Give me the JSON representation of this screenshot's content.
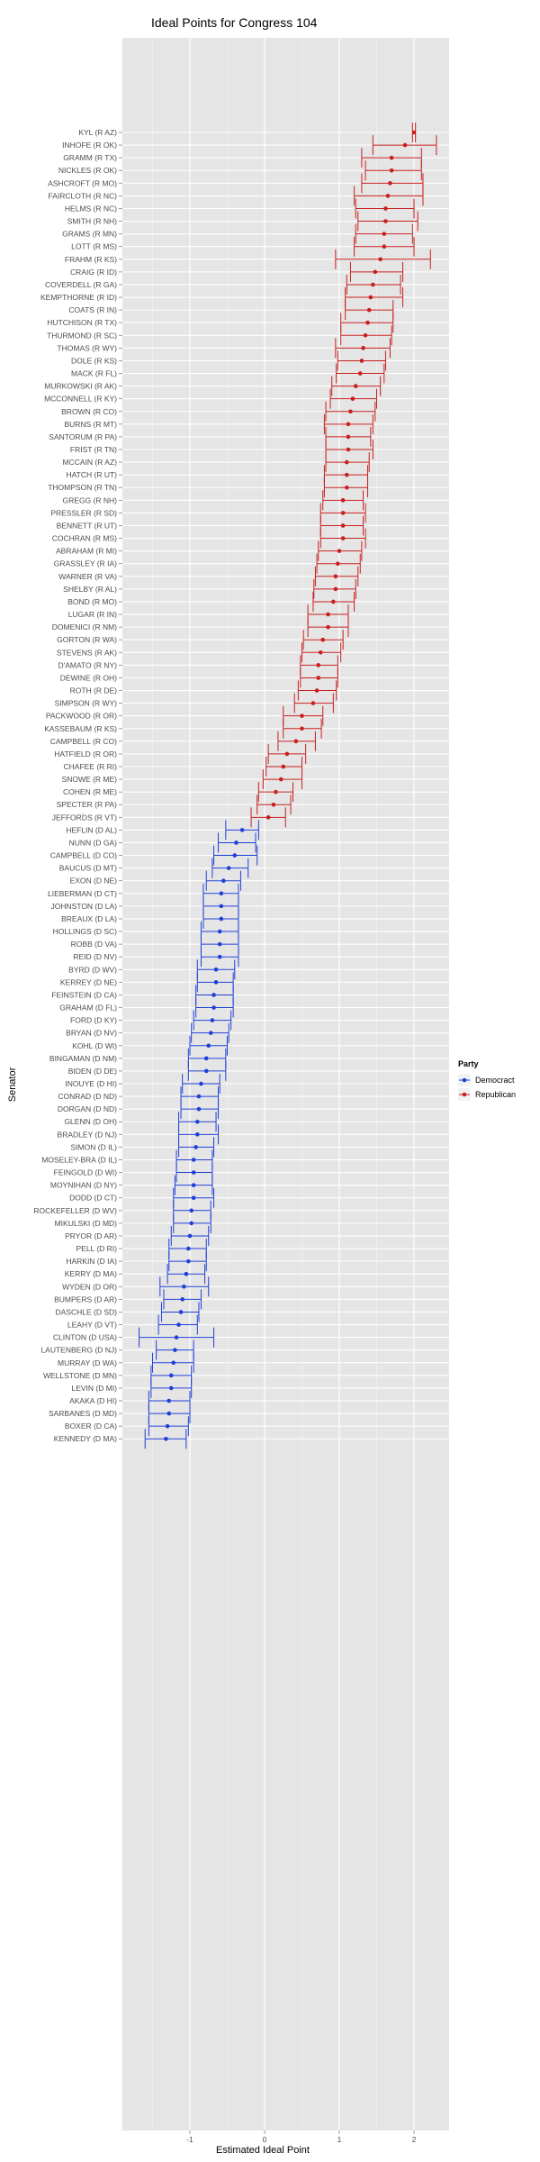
{
  "chart_data": {
    "type": "scatter",
    "title": "Ideal Points for Congress 104",
    "xlabel": "Estimated Ideal Point",
    "ylabel": "Senator",
    "xlim": [
      -2,
      2.5
    ],
    "x_ticks": [
      -1,
      0,
      1,
      2
    ],
    "grid": true,
    "legend": {
      "title": "Party",
      "placement": "right",
      "entries": [
        {
          "name": "Democract",
          "color": "#1f3fd6"
        },
        {
          "name": "Republican",
          "color": "#c81e1e"
        }
      ]
    },
    "colors": {
      "Democract": "#1f3fd6",
      "Republican": "#c81e1e",
      "panel": "#e5e5e5",
      "grid": "#ffffff"
    },
    "senators": [
      {
        "label": "KYL (R AZ)",
        "party": "Republican",
        "x": 2.0,
        "lo": 1.98,
        "hi": 2.02
      },
      {
        "label": "INHOFE (R OK)",
        "party": "Republican",
        "x": 1.88,
        "lo": 1.45,
        "hi": 2.3
      },
      {
        "label": "GRAMM (R TX)",
        "party": "Republican",
        "x": 1.7,
        "lo": 1.3,
        "hi": 2.1
      },
      {
        "label": "NICKLES (R OK)",
        "party": "Republican",
        "x": 1.7,
        "lo": 1.35,
        "hi": 2.1
      },
      {
        "label": "ASHCROFT (R MO)",
        "party": "Republican",
        "x": 1.68,
        "lo": 1.3,
        "hi": 2.12
      },
      {
        "label": "FAIRCLOTH (R NC)",
        "party": "Republican",
        "x": 1.65,
        "lo": 1.2,
        "hi": 2.12
      },
      {
        "label": "HELMS (R NC)",
        "party": "Republican",
        "x": 1.62,
        "lo": 1.22,
        "hi": 2.0
      },
      {
        "label": "SMITH (R NH)",
        "party": "Republican",
        "x": 1.62,
        "lo": 1.25,
        "hi": 2.05
      },
      {
        "label": "GRAMS (R MN)",
        "party": "Republican",
        "x": 1.6,
        "lo": 1.22,
        "hi": 1.98
      },
      {
        "label": "LOTT (R MS)",
        "party": "Republican",
        "x": 1.6,
        "lo": 1.2,
        "hi": 2.0
      },
      {
        "label": "FRAHM (R KS)",
        "party": "Republican",
        "x": 1.55,
        "lo": 0.95,
        "hi": 2.22
      },
      {
        "label": "CRAIG (R ID)",
        "party": "Republican",
        "x": 1.48,
        "lo": 1.15,
        "hi": 1.85
      },
      {
        "label": "COVERDELL (R GA)",
        "party": "Republican",
        "x": 1.45,
        "lo": 1.1,
        "hi": 1.82
      },
      {
        "label": "KEMPTHORNE (R ID)",
        "party": "Republican",
        "x": 1.42,
        "lo": 1.08,
        "hi": 1.85
      },
      {
        "label": "COATS (R IN)",
        "party": "Republican",
        "x": 1.4,
        "lo": 1.08,
        "hi": 1.72
      },
      {
        "label": "HUTCHISON (R TX)",
        "party": "Republican",
        "x": 1.38,
        "lo": 1.02,
        "hi": 1.72
      },
      {
        "label": "THURMOND (R SC)",
        "party": "Republican",
        "x": 1.35,
        "lo": 1.02,
        "hi": 1.7
      },
      {
        "label": "THOMAS (R WY)",
        "party": "Republican",
        "x": 1.32,
        "lo": 0.95,
        "hi": 1.68
      },
      {
        "label": "DOLE (R KS)",
        "party": "Republican",
        "x": 1.3,
        "lo": 0.98,
        "hi": 1.62
      },
      {
        "label": "MACK (R FL)",
        "party": "Republican",
        "x": 1.28,
        "lo": 0.96,
        "hi": 1.6
      },
      {
        "label": "MURKOWSKI (R AK)",
        "party": "Republican",
        "x": 1.22,
        "lo": 0.9,
        "hi": 1.55
      },
      {
        "label": "MCCONNELL (R KY)",
        "party": "Republican",
        "x": 1.18,
        "lo": 0.88,
        "hi": 1.5
      },
      {
        "label": "BROWN (R CO)",
        "party": "Republican",
        "x": 1.15,
        "lo": 0.82,
        "hi": 1.48
      },
      {
        "label": "BURNS (R MT)",
        "party": "Republican",
        "x": 1.12,
        "lo": 0.8,
        "hi": 1.45
      },
      {
        "label": "SANTORUM (R PA)",
        "party": "Republican",
        "x": 1.12,
        "lo": 0.82,
        "hi": 1.42
      },
      {
        "label": "FRIST (R TN)",
        "party": "Republican",
        "x": 1.12,
        "lo": 0.82,
        "hi": 1.45
      },
      {
        "label": "MCCAIN (R AZ)",
        "party": "Republican",
        "x": 1.1,
        "lo": 0.82,
        "hi": 1.4
      },
      {
        "label": "HATCH (R UT)",
        "party": "Republican",
        "x": 1.1,
        "lo": 0.8,
        "hi": 1.38
      },
      {
        "label": "THOMPSON (R TN)",
        "party": "Republican",
        "x": 1.1,
        "lo": 0.8,
        "hi": 1.38
      },
      {
        "label": "GREGG (R NH)",
        "party": "Republican",
        "x": 1.05,
        "lo": 0.78,
        "hi": 1.32
      },
      {
        "label": "PRESSLER (R SD)",
        "party": "Republican",
        "x": 1.05,
        "lo": 0.75,
        "hi": 1.35
      },
      {
        "label": "BENNETT (R UT)",
        "party": "Republican",
        "x": 1.05,
        "lo": 0.75,
        "hi": 1.32
      },
      {
        "label": "COCHRAN (R MS)",
        "party": "Republican",
        "x": 1.05,
        "lo": 0.75,
        "hi": 1.35
      },
      {
        "label": "ABRAHAM (R MI)",
        "party": "Republican",
        "x": 1.0,
        "lo": 0.72,
        "hi": 1.3
      },
      {
        "label": "GRASSLEY (R IA)",
        "party": "Republican",
        "x": 0.98,
        "lo": 0.7,
        "hi": 1.28
      },
      {
        "label": "WARNER (R VA)",
        "party": "Republican",
        "x": 0.95,
        "lo": 0.68,
        "hi": 1.25
      },
      {
        "label": "SHELBY (R AL)",
        "party": "Republican",
        "x": 0.95,
        "lo": 0.66,
        "hi": 1.22
      },
      {
        "label": "BOND (R MO)",
        "party": "Republican",
        "x": 0.92,
        "lo": 0.65,
        "hi": 1.2
      },
      {
        "label": "LUGAR (R IN)",
        "party": "Republican",
        "x": 0.85,
        "lo": 0.58,
        "hi": 1.12
      },
      {
        "label": "DOMENICI (R NM)",
        "party": "Republican",
        "x": 0.85,
        "lo": 0.58,
        "hi": 1.12
      },
      {
        "label": "GORTON (R WA)",
        "party": "Republican",
        "x": 0.78,
        "lo": 0.52,
        "hi": 1.05
      },
      {
        "label": "STEVENS (R AK)",
        "party": "Republican",
        "x": 0.75,
        "lo": 0.5,
        "hi": 1.02
      },
      {
        "label": "D'AMATO (R NY)",
        "party": "Republican",
        "x": 0.72,
        "lo": 0.48,
        "hi": 0.98
      },
      {
        "label": "DEWINE (R OH)",
        "party": "Republican",
        "x": 0.72,
        "lo": 0.48,
        "hi": 0.98
      },
      {
        "label": "ROTH (R DE)",
        "party": "Republican",
        "x": 0.7,
        "lo": 0.45,
        "hi": 0.96
      },
      {
        "label": "SIMPSON (R WY)",
        "party": "Republican",
        "x": 0.65,
        "lo": 0.4,
        "hi": 0.92
      },
      {
        "label": "PACKWOOD (R OR)",
        "party": "Republican",
        "x": 0.5,
        "lo": 0.25,
        "hi": 0.78
      },
      {
        "label": "KASSEBAUM (R KS)",
        "party": "Republican",
        "x": 0.5,
        "lo": 0.25,
        "hi": 0.76
      },
      {
        "label": "CAMPBELL (R CO)",
        "party": "Republican",
        "x": 0.42,
        "lo": 0.18,
        "hi": 0.68
      },
      {
        "label": "HATFIELD (R OR)",
        "party": "Republican",
        "x": 0.3,
        "lo": 0.05,
        "hi": 0.55
      },
      {
        "label": "CHAFEE (R RI)",
        "party": "Republican",
        "x": 0.25,
        "lo": 0.02,
        "hi": 0.5
      },
      {
        "label": "SNOWE (R ME)",
        "party": "Republican",
        "x": 0.22,
        "lo": -0.02,
        "hi": 0.5
      },
      {
        "label": "COHEN (R ME)",
        "party": "Republican",
        "x": 0.15,
        "lo": -0.08,
        "hi": 0.38
      },
      {
        "label": "SPECTER (R PA)",
        "party": "Republican",
        "x": 0.12,
        "lo": -0.1,
        "hi": 0.35
      },
      {
        "label": "JEFFORDS (R VT)",
        "party": "Republican",
        "x": 0.05,
        "lo": -0.18,
        "hi": 0.28
      },
      {
        "label": "HEFLIN (D AL)",
        "party": "Democract",
        "x": -0.3,
        "lo": -0.52,
        "hi": -0.08
      },
      {
        "label": "NUNN (D GA)",
        "party": "Democract",
        "x": -0.38,
        "lo": -0.62,
        "hi": -0.12
      },
      {
        "label": "CAMPBELL (D CO)",
        "party": "Democract",
        "x": -0.4,
        "lo": -0.68,
        "hi": -0.1
      },
      {
        "label": "BAUCUS (D MT)",
        "party": "Democract",
        "x": -0.48,
        "lo": -0.7,
        "hi": -0.22
      },
      {
        "label": "EXON (D NE)",
        "party": "Democract",
        "x": -0.55,
        "lo": -0.78,
        "hi": -0.32
      },
      {
        "label": "LIEBERMAN (D CT)",
        "party": "Democract",
        "x": -0.58,
        "lo": -0.82,
        "hi": -0.35
      },
      {
        "label": "JOHNSTON (D LA)",
        "party": "Democract",
        "x": -0.58,
        "lo": -0.82,
        "hi": -0.35
      },
      {
        "label": "BREAUX (D LA)",
        "party": "Democract",
        "x": -0.58,
        "lo": -0.82,
        "hi": -0.35
      },
      {
        "label": "HOLLINGS (D SC)",
        "party": "Democract",
        "x": -0.6,
        "lo": -0.85,
        "hi": -0.35
      },
      {
        "label": "ROBB (D VA)",
        "party": "Democract",
        "x": -0.6,
        "lo": -0.85,
        "hi": -0.35
      },
      {
        "label": "REID (D NV)",
        "party": "Democract",
        "x": -0.6,
        "lo": -0.85,
        "hi": -0.35
      },
      {
        "label": "BYRD (D WV)",
        "party": "Democract",
        "x": -0.65,
        "lo": -0.9,
        "hi": -0.4
      },
      {
        "label": "KERREY (D NE)",
        "party": "Democract",
        "x": -0.65,
        "lo": -0.9,
        "hi": -0.42
      },
      {
        "label": "FEINSTEIN (D CA)",
        "party": "Democract",
        "x": -0.68,
        "lo": -0.92,
        "hi": -0.42
      },
      {
        "label": "GRAHAM (D FL)",
        "party": "Democract",
        "x": -0.68,
        "lo": -0.92,
        "hi": -0.42
      },
      {
        "label": "FORD (D KY)",
        "party": "Democract",
        "x": -0.7,
        "lo": -0.95,
        "hi": -0.45
      },
      {
        "label": "BRYAN (D NV)",
        "party": "Democract",
        "x": -0.72,
        "lo": -0.98,
        "hi": -0.48
      },
      {
        "label": "KOHL (D WI)",
        "party": "Democract",
        "x": -0.75,
        "lo": -1.0,
        "hi": -0.5
      },
      {
        "label": "BINGAMAN (D NM)",
        "party": "Democract",
        "x": -0.78,
        "lo": -1.02,
        "hi": -0.52
      },
      {
        "label": "BIDEN (D DE)",
        "party": "Democract",
        "x": -0.78,
        "lo": -1.02,
        "hi": -0.52
      },
      {
        "label": "INOUYE (D HI)",
        "party": "Democract",
        "x": -0.85,
        "lo": -1.1,
        "hi": -0.6
      },
      {
        "label": "CONRAD (D ND)",
        "party": "Democract",
        "x": -0.88,
        "lo": -1.12,
        "hi": -0.62
      },
      {
        "label": "DORGAN (D ND)",
        "party": "Democract",
        "x": -0.88,
        "lo": -1.12,
        "hi": -0.62
      },
      {
        "label": "GLENN (D OH)",
        "party": "Democract",
        "x": -0.9,
        "lo": -1.15,
        "hi": -0.65
      },
      {
        "label": "BRADLEY (D NJ)",
        "party": "Democract",
        "x": -0.9,
        "lo": -1.15,
        "hi": -0.62
      },
      {
        "label": "SIMON (D IL)",
        "party": "Democract",
        "x": -0.92,
        "lo": -1.15,
        "hi": -0.68
      },
      {
        "label": "MOSELEY-BRA (D IL)",
        "party": "Democract",
        "x": -0.95,
        "lo": -1.18,
        "hi": -0.7
      },
      {
        "label": "FEINGOLD (D WI)",
        "party": "Democract",
        "x": -0.95,
        "lo": -1.18,
        "hi": -0.7
      },
      {
        "label": "MOYNIHAN (D NY)",
        "party": "Democract",
        "x": -0.95,
        "lo": -1.2,
        "hi": -0.7
      },
      {
        "label": "DODD (D CT)",
        "party": "Democract",
        "x": -0.95,
        "lo": -1.22,
        "hi": -0.68
      },
      {
        "label": "ROCKEFELLER (D WV)",
        "party": "Democract",
        "x": -0.98,
        "lo": -1.22,
        "hi": -0.72
      },
      {
        "label": "MIKULSKI (D MD)",
        "party": "Democract",
        "x": -0.98,
        "lo": -1.22,
        "hi": -0.72
      },
      {
        "label": "PRYOR (D AR)",
        "party": "Democract",
        "x": -1.0,
        "lo": -1.25,
        "hi": -0.75
      },
      {
        "label": "PELL (D RI)",
        "party": "Democract",
        "x": -1.02,
        "lo": -1.28,
        "hi": -0.78
      },
      {
        "label": "HARKIN (D IA)",
        "party": "Democract",
        "x": -1.02,
        "lo": -1.28,
        "hi": -0.78
      },
      {
        "label": "KERRY (D MA)",
        "party": "Democract",
        "x": -1.05,
        "lo": -1.3,
        "hi": -0.8
      },
      {
        "label": "WYDEN (D OR)",
        "party": "Democract",
        "x": -1.08,
        "lo": -1.4,
        "hi": -0.75
      },
      {
        "label": "BUMPERS (D AR)",
        "party": "Democract",
        "x": -1.1,
        "lo": -1.35,
        "hi": -0.85
      },
      {
        "label": "DASCHLE (D SD)",
        "party": "Democract",
        "x": -1.12,
        "lo": -1.38,
        "hi": -0.88
      },
      {
        "label": "LEAHY (D VT)",
        "party": "Democract",
        "x": -1.15,
        "lo": -1.42,
        "hi": -0.9
      },
      {
        "label": "CLINTON (D USA)",
        "party": "Democract",
        "x": -1.18,
        "lo": -1.68,
        "hi": -0.68
      },
      {
        "label": "LAUTENBERG (D NJ)",
        "party": "Democract",
        "x": -1.2,
        "lo": -1.45,
        "hi": -0.95
      },
      {
        "label": "MURRAY (D WA)",
        "party": "Democract",
        "x": -1.22,
        "lo": -1.5,
        "hi": -0.95
      },
      {
        "label": "WELLSTONE (D MN)",
        "party": "Democract",
        "x": -1.25,
        "lo": -1.52,
        "hi": -0.98
      },
      {
        "label": "LEVIN (D MI)",
        "party": "Democract",
        "x": -1.25,
        "lo": -1.52,
        "hi": -0.98
      },
      {
        "label": "AKAKA (D HI)",
        "party": "Democract",
        "x": -1.28,
        "lo": -1.55,
        "hi": -1.0
      },
      {
        "label": "SARBANES (D MD)",
        "party": "Democract",
        "x": -1.28,
        "lo": -1.55,
        "hi": -1.0
      },
      {
        "label": "BOXER (D CA)",
        "party": "Democract",
        "x": -1.3,
        "lo": -1.55,
        "hi": -1.02
      },
      {
        "label": "KENNEDY (D MA)",
        "party": "Democract",
        "x": -1.32,
        "lo": -1.6,
        "hi": -1.05
      }
    ]
  }
}
